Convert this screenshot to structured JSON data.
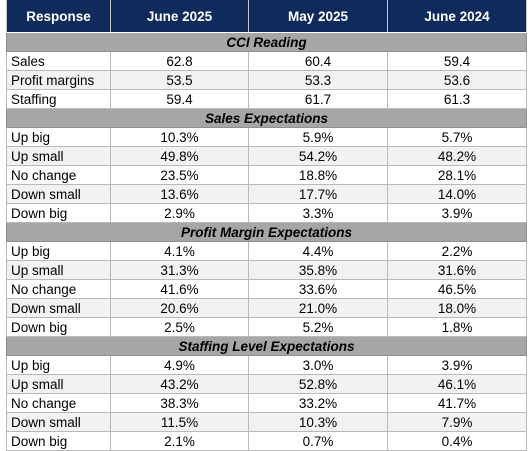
{
  "header": [
    "Response",
    "June 2025",
    "May 2025",
    "June 2024"
  ],
  "sections": [
    {
      "title": "CCI Reading",
      "rows": [
        {
          "label": "Sales",
          "values": [
            "62.8",
            "60.4",
            "59.4"
          ]
        },
        {
          "label": "Profit margins",
          "values": [
            "53.5",
            "53.3",
            "53.6"
          ]
        },
        {
          "label": "Staffing",
          "values": [
            "59.4",
            "61.7",
            "61.3"
          ]
        }
      ]
    },
    {
      "title": "Sales Expectations",
      "rows": [
        {
          "label": "Up big",
          "values": [
            "10.3%",
            "5.9%",
            "5.7%"
          ]
        },
        {
          "label": "Up small",
          "values": [
            "49.8%",
            "54.2%",
            "48.2%"
          ]
        },
        {
          "label": "No change",
          "values": [
            "23.5%",
            "18.8%",
            "28.1%"
          ]
        },
        {
          "label": "Down small",
          "values": [
            "13.6%",
            "17.7%",
            "14.0%"
          ]
        },
        {
          "label": "Down big",
          "values": [
            "2.9%",
            "3.3%",
            "3.9%"
          ]
        }
      ]
    },
    {
      "title": "Profit Margin Expectations",
      "rows": [
        {
          "label": "Up big",
          "values": [
            "4.1%",
            "4.4%",
            "2.2%"
          ]
        },
        {
          "label": "Up small",
          "values": [
            "31.3%",
            "35.8%",
            "31.6%"
          ]
        },
        {
          "label": "No change",
          "values": [
            "41.6%",
            "33.6%",
            "46.5%"
          ]
        },
        {
          "label": "Down small",
          "values": [
            "20.6%",
            "21.0%",
            "18.0%"
          ]
        },
        {
          "label": "Down big",
          "values": [
            "2.5%",
            "5.2%",
            "1.8%"
          ]
        }
      ]
    },
    {
      "title": "Staffing Level Expectations",
      "rows": [
        {
          "label": "Up big",
          "values": [
            "4.9%",
            "3.0%",
            "3.9%"
          ]
        },
        {
          "label": "Up small",
          "values": [
            "43.2%",
            "52.8%",
            "46.1%"
          ]
        },
        {
          "label": "No change",
          "values": [
            "38.3%",
            "33.2%",
            "41.7%"
          ]
        },
        {
          "label": "Down small",
          "values": [
            "11.5%",
            "10.3%",
            "7.9%"
          ]
        },
        {
          "label": "Down big",
          "values": [
            "2.1%",
            "0.7%",
            "0.4%"
          ]
        }
      ]
    }
  ],
  "colors": {
    "header_bg": "#0e2b5c",
    "header_text": "#ffffff",
    "section_bg": "#a6a6a6",
    "alt_row_bg": "#f2f2f2",
    "grid": "#b9b9b9"
  }
}
